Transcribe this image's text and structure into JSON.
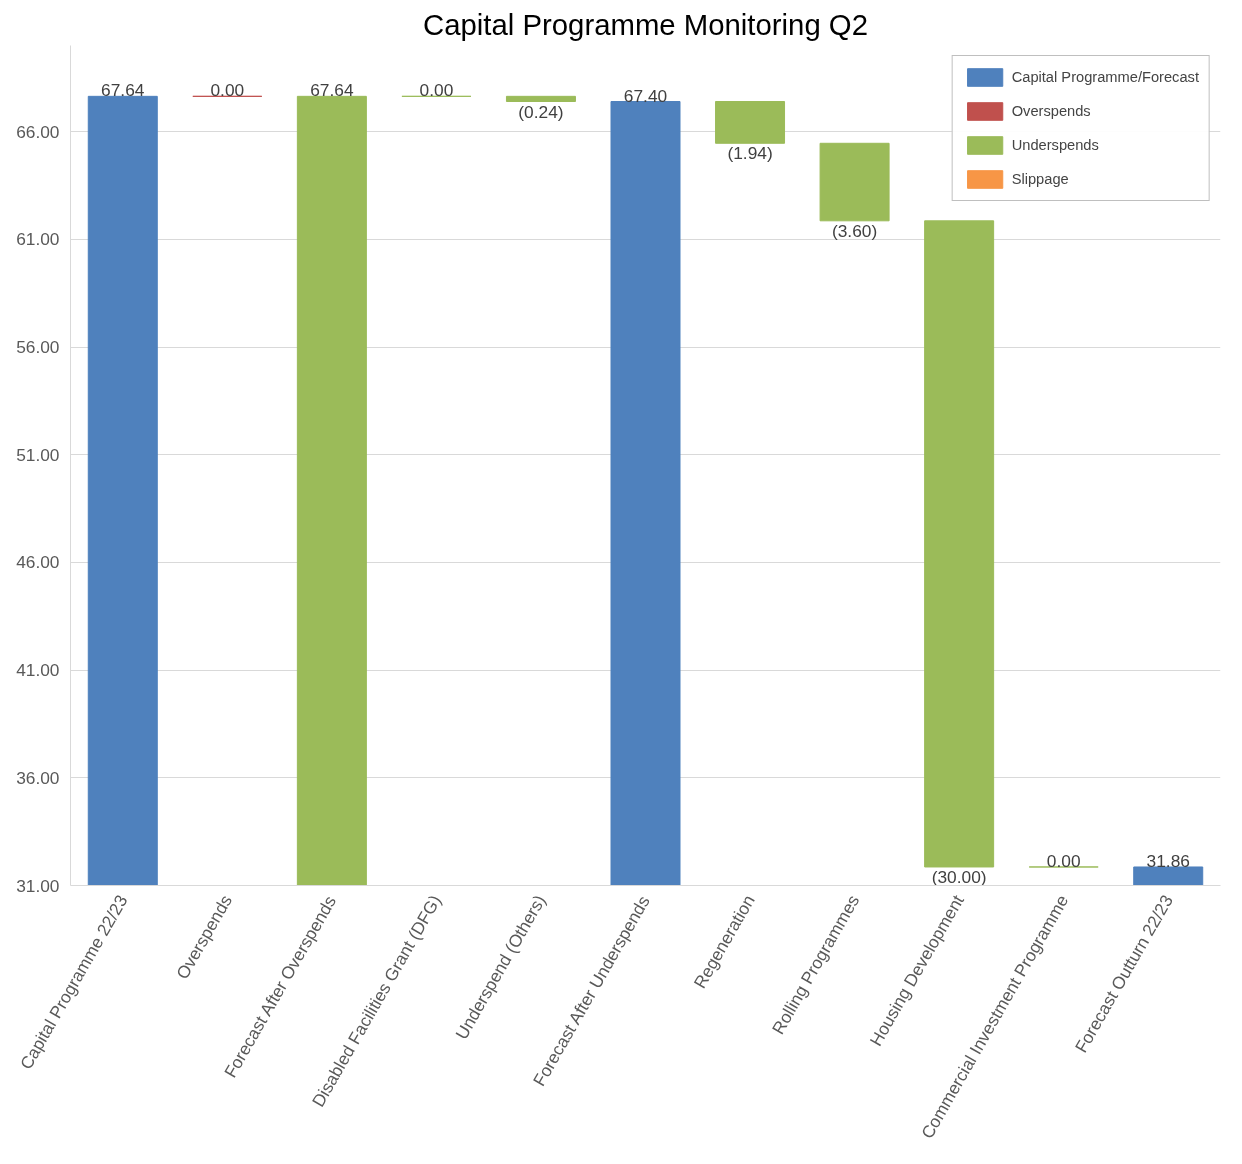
{
  "chart_data": {
    "type": "bar",
    "title": "Capital Programme Monitoring Q2",
    "categories": [
      "Capital Programme 22/23",
      "Overspends",
      "Forecast After Overspends",
      "Disabled Facilities Grant (DFG)",
      "Underspend (Others)",
      "Forecast After Underspends",
      "Regeneration",
      "Rolling Programmes",
      "Housing Development",
      "Commercial Investment Programme",
      "Forecast Outturn 22/23"
    ],
    "series": [
      {
        "name": "Capital Programme/Forecast",
        "color": "#4f81bd",
        "values": [
          36.64,
          null,
          null,
          null,
          null,
          36.4,
          null,
          null,
          null,
          null,
          0.86
        ],
        "base": [
          31,
          null,
          null,
          null,
          null,
          31,
          null,
          null,
          null,
          null,
          31
        ]
      },
      {
        "name": "Overspends",
        "color": "#c0504d",
        "values": [
          null,
          0,
          null,
          null,
          null,
          null,
          null,
          null,
          null,
          null,
          null
        ],
        "base": [
          null,
          67.64,
          null,
          null,
          null,
          null,
          null,
          null,
          null,
          null,
          null
        ]
      },
      {
        "name": "Underspends",
        "color": "#9bbb59",
        "values": [
          null,
          null,
          36.64,
          0,
          -0.24,
          null,
          -1.94,
          -3.6,
          -30.0,
          0,
          null
        ],
        "base": [
          null,
          null,
          31,
          67.64,
          67.64,
          null,
          67.4,
          65.46,
          61.86,
          31.86,
          null
        ]
      },
      {
        "name": "Slippage",
        "color": "#f79646",
        "values": [
          null,
          null,
          null,
          null,
          null,
          null,
          null,
          null,
          null,
          null,
          null
        ]
      }
    ],
    "value_labels": [
      "67.64",
      "0.00",
      "67.64",
      "0.00",
      "(0.24)",
      "67.40",
      "(1.94)",
      "(3.60)",
      "(30.00)",
      "0.00",
      "31.86"
    ],
    "ylim": [
      31,
      70
    ],
    "yticks": [
      {
        "value": 31,
        "label": "31.00"
      },
      {
        "value": 36,
        "label": "36.00"
      },
      {
        "value": 41,
        "label": "41.00"
      },
      {
        "value": 46,
        "label": "46.00"
      },
      {
        "value": 51,
        "label": "51.00"
      },
      {
        "value": 56,
        "label": "56.00"
      },
      {
        "value": 61,
        "label": "61.00"
      },
      {
        "value": 66,
        "label": "66.00"
      }
    ],
    "grid": "y",
    "legend": "top right"
  }
}
